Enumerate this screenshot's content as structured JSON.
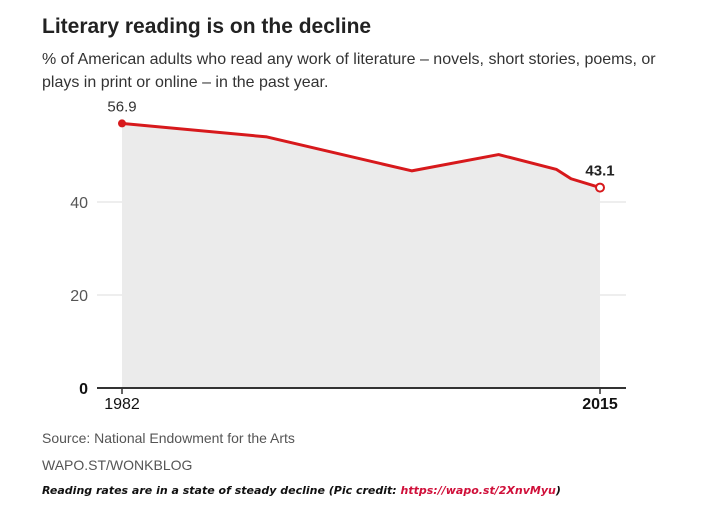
{
  "title": "Literary reading is on the decline",
  "subtitle": "% of American adults who read any work of literature – novels, short stories, poems, or plays in print or online – in the past year.",
  "source": "Source: National Endowment for the Arts",
  "credit": "WAPO.ST/WONKBLOG",
  "caption": {
    "text": "Reading rates are in a state of steady decline (Pic credit: ",
    "link": "https://wapo.st/2XnvMyu",
    "end": ")"
  },
  "colors": {
    "line": "#d7191c",
    "area": "#ebebeb",
    "grid": "#dddddd",
    "baseline": "#333333"
  },
  "chart_data": {
    "type": "area",
    "x": [
      1982,
      1992,
      2002,
      2008,
      2012,
      2013,
      2015
    ],
    "values": [
      56.9,
      54.0,
      46.7,
      50.2,
      47.0,
      45.0,
      43.1
    ],
    "xlim": [
      1982,
      2015
    ],
    "ylim": [
      0,
      60
    ],
    "yticks": [
      0,
      20,
      40
    ],
    "x_tick_labels": [
      "1982",
      "2015"
    ],
    "start_label": "56.9",
    "end_label": "43.1",
    "grid": true
  }
}
